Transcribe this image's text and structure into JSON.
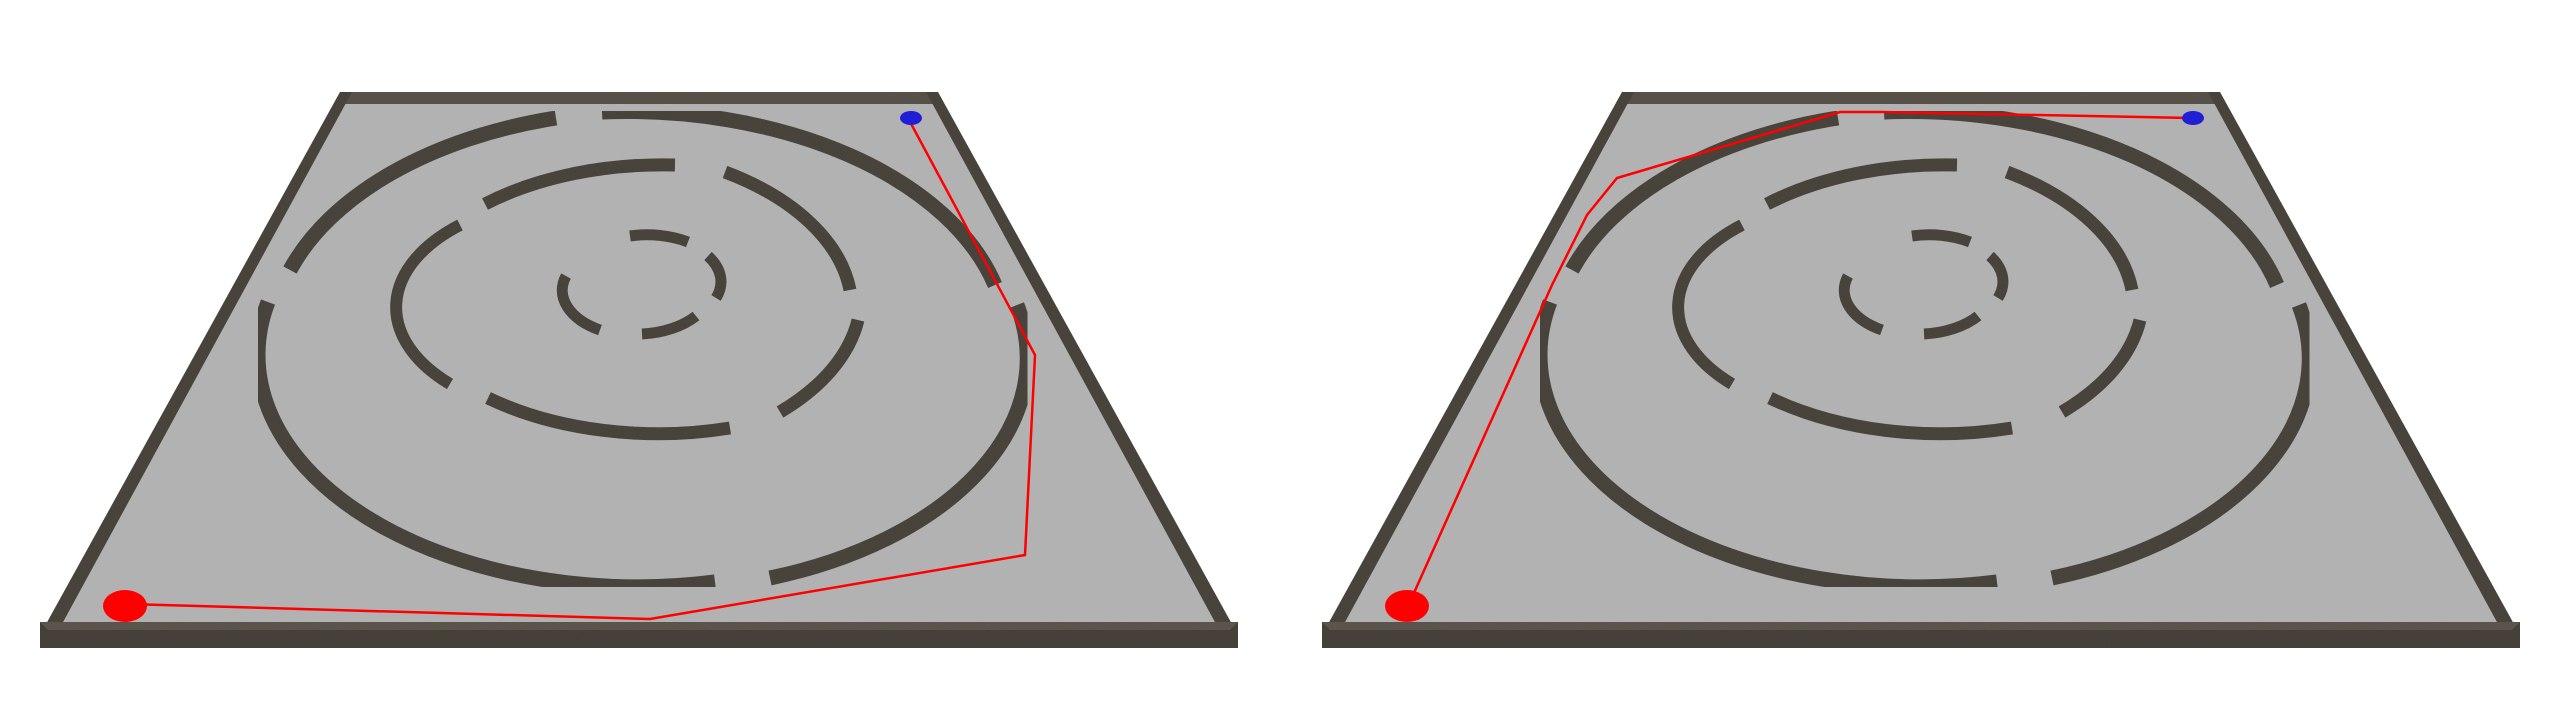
{
  "scene": {
    "background": "#ffffff",
    "floor_color": "#b2b2b2",
    "wall_color": "#4b463e",
    "wall_top_color": "#5e584f",
    "path_color": "#ff0000",
    "start_color": "#ff0000",
    "goal_color": "#1f1fd6",
    "panels": [
      {
        "name": "panel-left",
        "path_label": "path-right-route"
      },
      {
        "name": "panel-right",
        "path_label": "path-left-route"
      }
    ]
  }
}
